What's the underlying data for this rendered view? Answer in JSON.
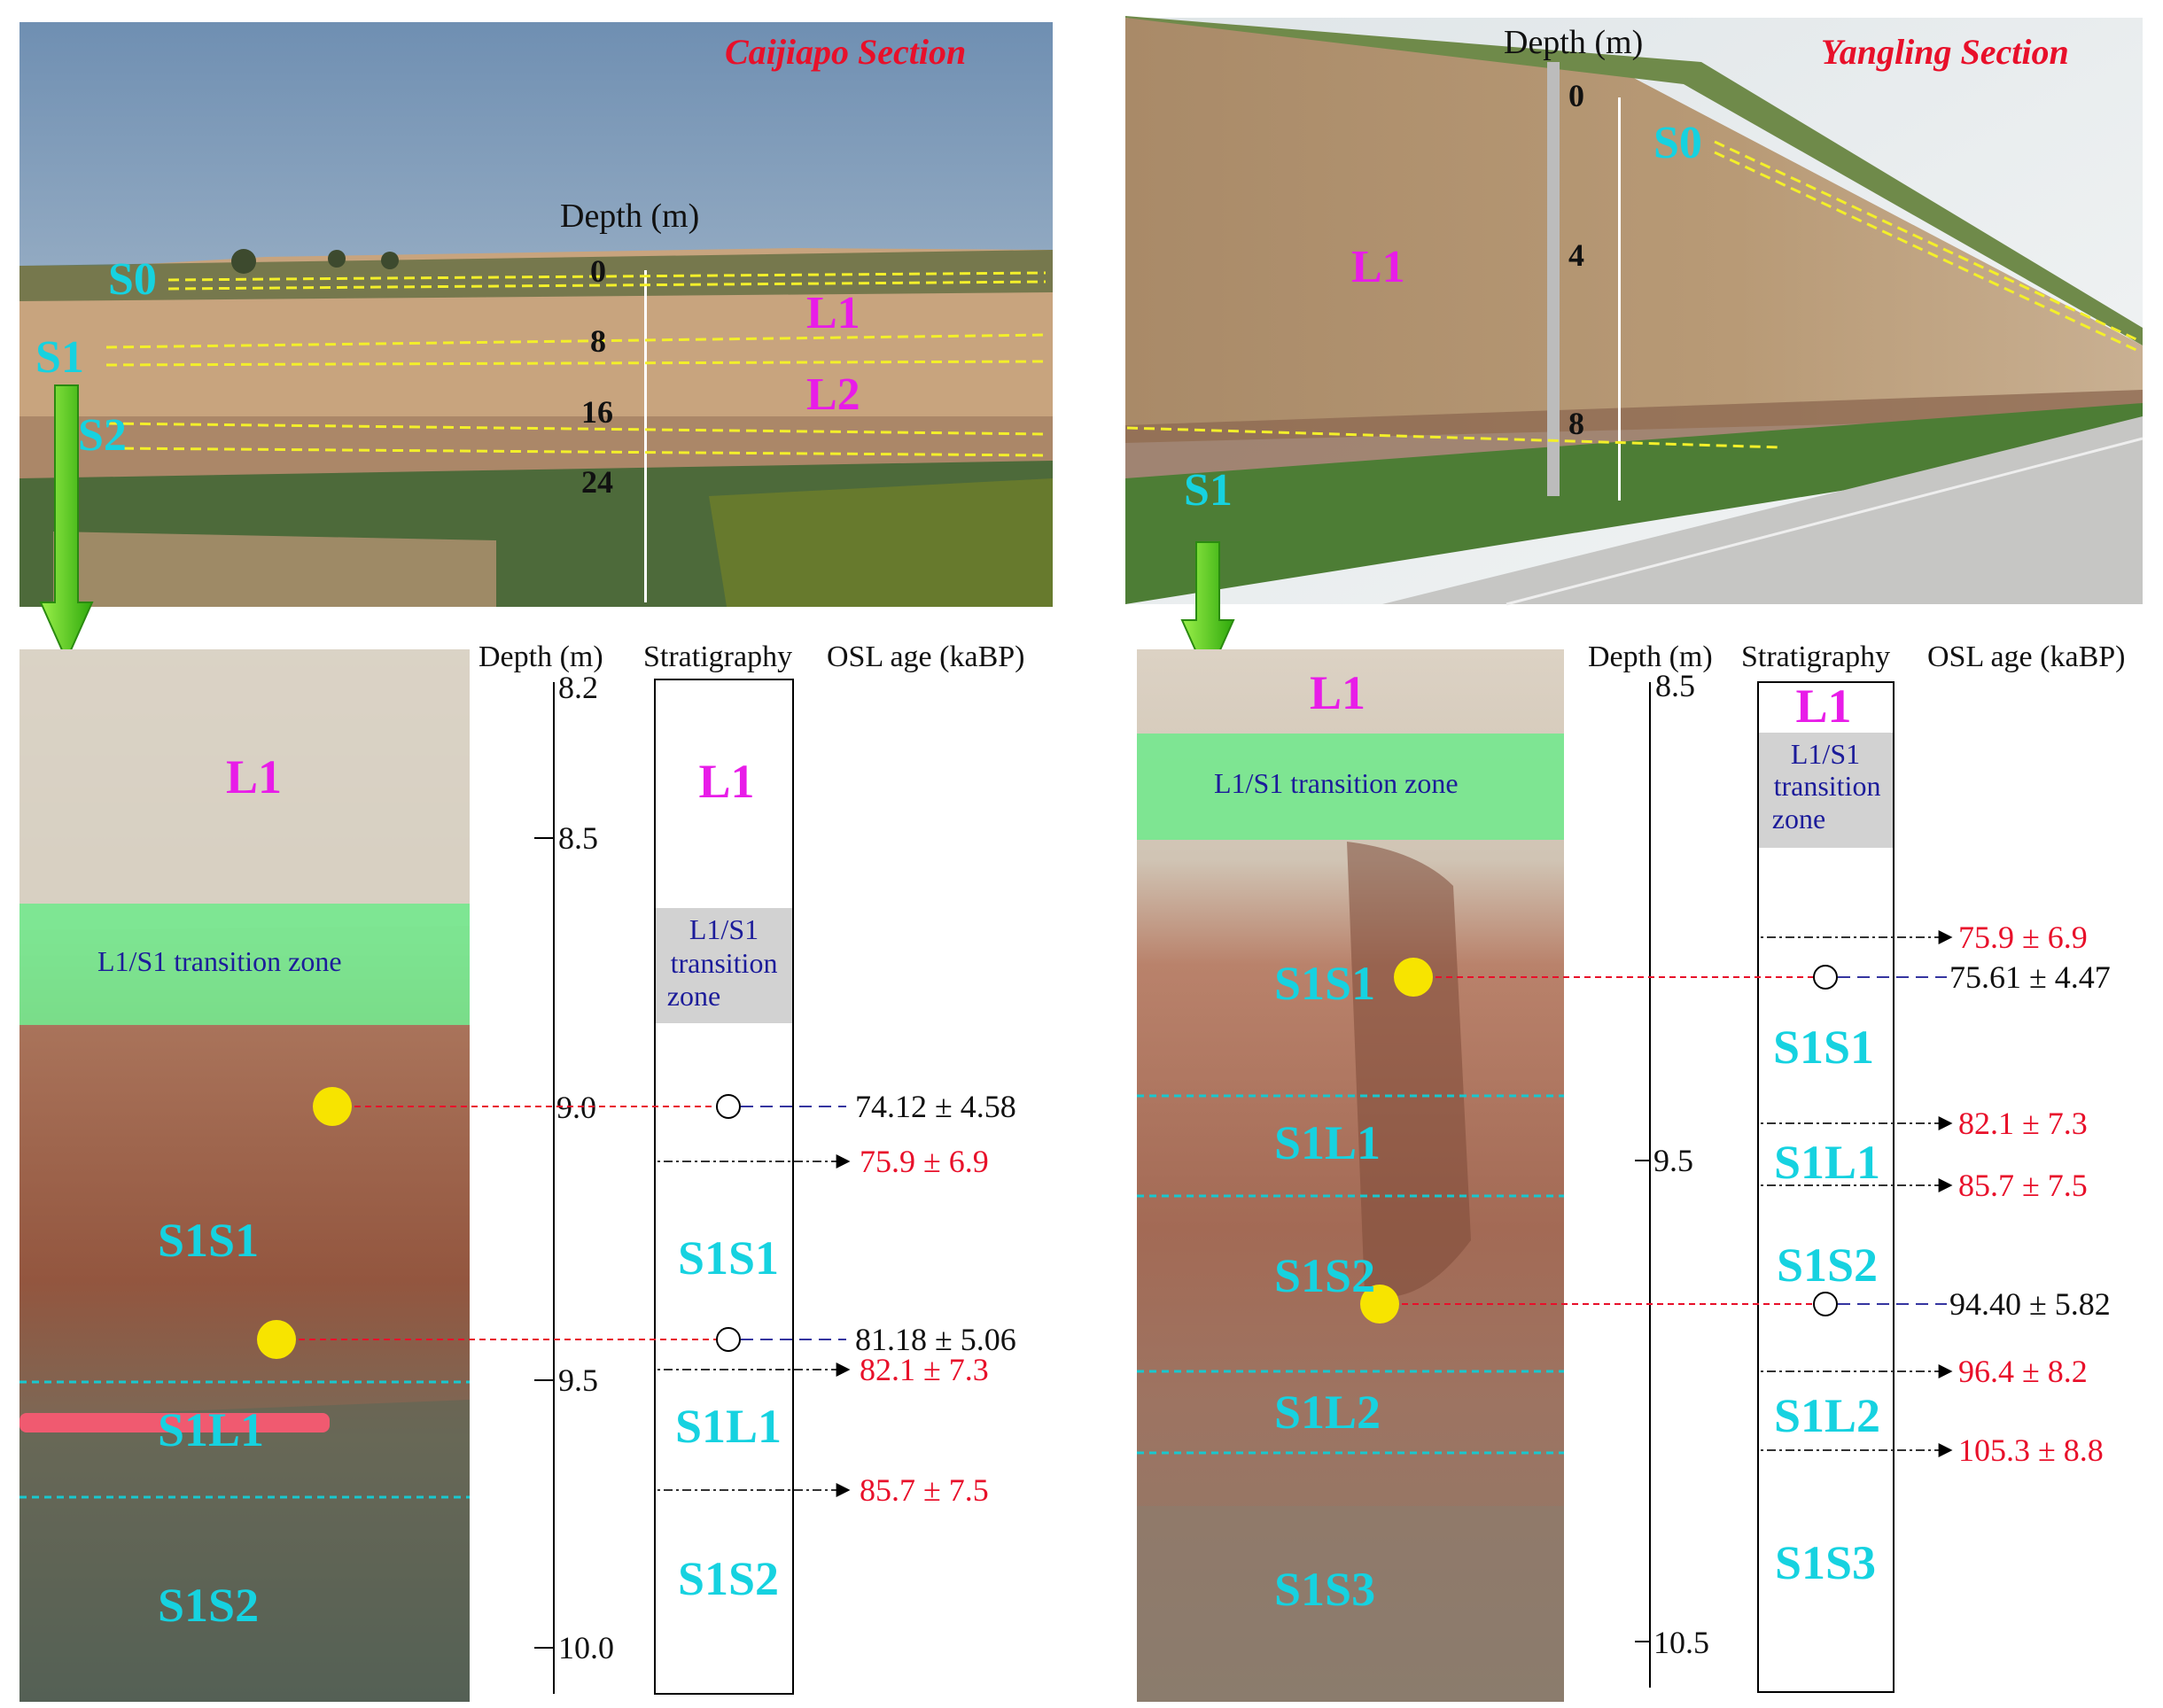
{
  "left": {
    "section_title": "Caijiapo Section",
    "photo_depth_label": "Depth (m)",
    "photo_depth_ticks": [
      "0",
      "8",
      "16",
      "24"
    ],
    "photo_layers": [
      "S0",
      "S1",
      "S2",
      "L1",
      "L2"
    ],
    "profile_photo_labels": [
      "L1",
      "S1S1",
      "S1L1",
      "S1S2"
    ],
    "transition_zone_label": "L1/S1 transition zone",
    "column_headers": {
      "depth": "Depth (m)",
      "stratigraphy": "Stratigraphy",
      "osl": "OSL age (kaBP)"
    },
    "depth_ticks": [
      "8.2",
      "8.5",
      "9.0",
      "9.5",
      "10.0"
    ],
    "strat_units": [
      "L1",
      "S1S1",
      "S1L1",
      "S1S2"
    ],
    "strat_transition": [
      "L1/S1",
      "transition",
      "zone"
    ],
    "osl_measured": [
      "74.12 ± 4.58",
      "81.18 ± 5.06"
    ],
    "osl_reference": [
      "75.9 ± 6.9",
      "82.1 ± 7.3",
      "85.7 ± 7.5"
    ]
  },
  "right": {
    "section_title": "Yangling Section",
    "photo_depth_label": "Depth (m)",
    "photo_depth_ticks": [
      "0",
      "4",
      "8"
    ],
    "photo_layers": [
      "S0",
      "L1",
      "S1"
    ],
    "profile_photo_labels": [
      "L1",
      "S1S1",
      "S1L1",
      "S1S2",
      "S1L2",
      "S1S3"
    ],
    "transition_zone_label": "L1/S1 transition zone",
    "column_headers": {
      "depth": "Depth (m)",
      "stratigraphy": "Stratigraphy",
      "osl": "OSL age (kaBP)"
    },
    "depth_ticks": [
      "8.5",
      "9.5",
      "10.5"
    ],
    "strat_units": [
      "L1",
      "S1S1",
      "S1L1",
      "S1S2",
      "S1L2",
      "S1S3"
    ],
    "strat_transition": [
      "L1/S1",
      "transition",
      "zone"
    ],
    "osl_measured": [
      "75.61 ± 4.47",
      "94.40 ± 5.82"
    ],
    "osl_reference": [
      "75.9 ± 6.9",
      "82.1 ± 7.3",
      "85.7 ± 7.5",
      "96.4 ± 8.2",
      "105.3 ± 8.8"
    ]
  },
  "colors": {
    "layer_label": "#16d2e0",
    "loess_label": "#e81ce8",
    "title_red": "#e8102a",
    "transition_green": "#74e88e",
    "transition_gray": "#d2d2d2",
    "sample_yellow": "#f7e400",
    "arrow_green": "#52d414",
    "boundary_yellow": "#f3ef2a"
  }
}
